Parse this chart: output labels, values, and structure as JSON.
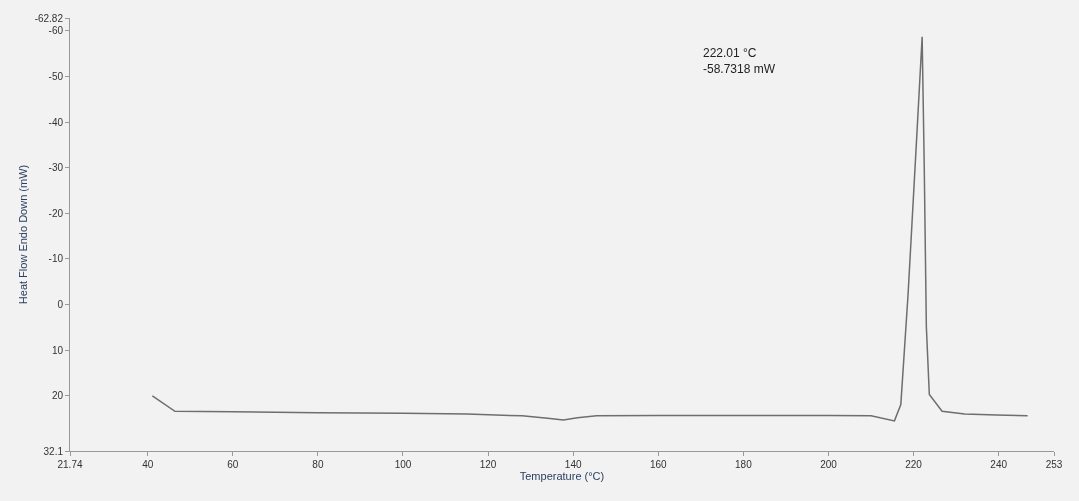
{
  "chart_data": {
    "type": "line",
    "xlabel": "Temperature (°C)",
    "ylabel": "Heat Flow Endo Down (mW)",
    "xlim": [
      21.74,
      253
    ],
    "xticks": [
      21.74,
      40,
      60,
      80,
      100,
      120,
      140,
      160,
      180,
      200,
      220,
      240,
      253
    ],
    "ylim": [
      32.1,
      -62.82
    ],
    "yticks": [
      32.1,
      20,
      10,
      0,
      -10,
      -20,
      -30,
      -40,
      -50,
      -60,
      -62.82
    ],
    "grid": false,
    "legend": false,
    "series": [
      {
        "color": "#6e6e6e",
        "x": [
          41.1,
          46.4,
          60,
          80,
          100,
          115,
          128,
          134,
          137.7,
          141,
          145.5,
          160,
          180,
          200,
          210,
          215.5,
          217,
          218.7,
          220.8,
          222.01,
          222.5,
          223,
          223.7,
          226.7,
          232,
          239.5,
          246.8
        ],
        "values": [
          20,
          23.4,
          23.5,
          23.7,
          23.8,
          24,
          24.4,
          24.9,
          25.3,
          24.8,
          24.4,
          24.3,
          24.3,
          24.3,
          24.4,
          25.5,
          21.9,
          -2.2,
          -37.8,
          -58.7,
          -30.6,
          4.8,
          19.7,
          23.4,
          24,
          24.2,
          24.4
        ]
      }
    ],
    "annotations": [
      "222.01 °C\n-58.7318 mW"
    ]
  }
}
